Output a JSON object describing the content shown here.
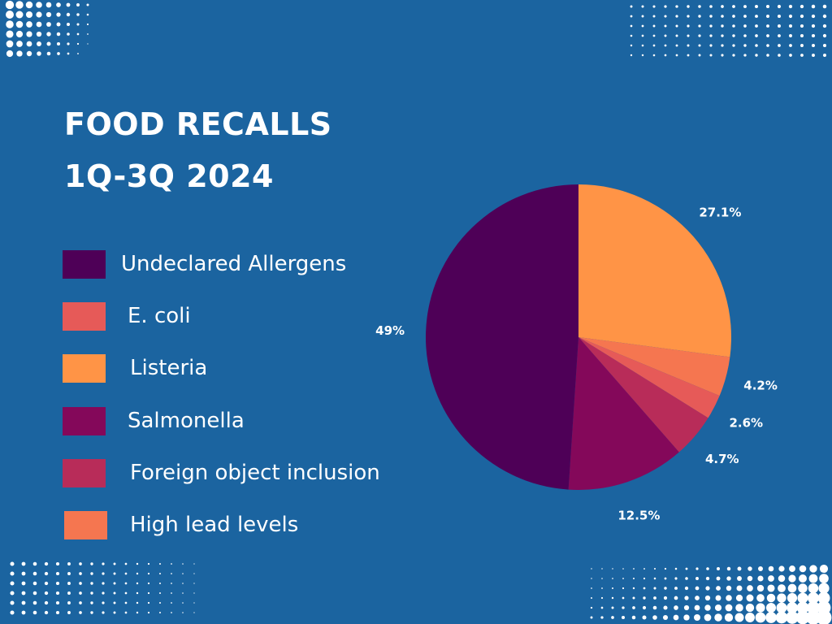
{
  "title": {
    "line1": "FOOD RECALLS",
    "line2": "1Q-3Q 2024"
  },
  "colors": {
    "background": "#1B64A0",
    "text": "#FFFFFF"
  },
  "legend": [
    {
      "label": "Undeclared Allergens",
      "color": "#4E0057"
    },
    {
      "label": "E. coli",
      "color": "#E65A58"
    },
    {
      "label": "Listeria",
      "color": "#FF9446"
    },
    {
      "label": "Salmonella",
      "color": "#84085A"
    },
    {
      "label": "Foreign object inclusion",
      "color": "#B82C59"
    },
    {
      "label": "High lead levels",
      "color": "#F57650"
    }
  ],
  "chart_data": {
    "type": "pie",
    "title": "FOOD RECALLS 1Q-3Q 2024",
    "start": "12 o'clock",
    "direction": "clockwise",
    "slices": [
      {
        "label": "Listeria",
        "value": 27.1,
        "display": "27.1%",
        "color": "#FF9446"
      },
      {
        "label": "High lead levels",
        "value": 4.2,
        "display": "4.2%",
        "color": "#F57650"
      },
      {
        "label": "E. coli",
        "value": 2.6,
        "display": "2.6%",
        "color": "#E65A58"
      },
      {
        "label": "Foreign object inclusion",
        "value": 4.7,
        "display": "4.7%",
        "color": "#B82C59"
      },
      {
        "label": "Salmonella",
        "value": 12.5,
        "display": "12.5%",
        "color": "#84085A"
      },
      {
        "label": "Undeclared Allergens",
        "value": 49,
        "display": "49%",
        "color": "#4E0057"
      }
    ]
  }
}
